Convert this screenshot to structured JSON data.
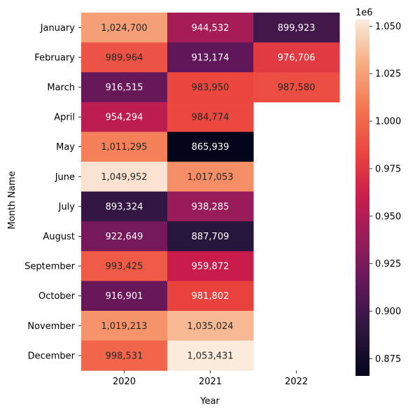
{
  "chart_data": {
    "type": "heatmap",
    "title": "",
    "xlabel": "Year",
    "ylabel": "Month Name",
    "columns": [
      "2020",
      "2021",
      "2022"
    ],
    "rows": [
      "January",
      "February",
      "March",
      "April",
      "May",
      "June",
      "July",
      "August",
      "September",
      "October",
      "November",
      "December"
    ],
    "values": [
      [
        1024700,
        944532,
        899923
      ],
      [
        989964,
        913174,
        976706
      ],
      [
        916515,
        983950,
        987580
      ],
      [
        954294,
        984774,
        null
      ],
      [
        1011295,
        865939,
        null
      ],
      [
        1049952,
        1017053,
        null
      ],
      [
        893324,
        938285,
        null
      ],
      [
        922649,
        887709,
        null
      ],
      [
        993425,
        959872,
        null
      ],
      [
        916901,
        981802,
        null
      ],
      [
        1019213,
        1035024,
        null
      ],
      [
        998531,
        1053431,
        null
      ]
    ],
    "value_labels": [
      [
        "1,024,700",
        "944,532",
        "899,923"
      ],
      [
        "989,964",
        "913,174",
        "976,706"
      ],
      [
        "916,515",
        "983,950",
        "987,580"
      ],
      [
        "954,294",
        "984,774",
        ""
      ],
      [
        "1,011,295",
        "865,939",
        ""
      ],
      [
        "1,049,952",
        "1,017,053",
        ""
      ],
      [
        "893,324",
        "938,285",
        ""
      ],
      [
        "922,649",
        "887,709",
        ""
      ],
      [
        "993,425",
        "959,872",
        ""
      ],
      [
        "916,901",
        "981,802",
        ""
      ],
      [
        "1,019,213",
        "1,035,024",
        ""
      ],
      [
        "998,531",
        "1,053,431",
        ""
      ]
    ],
    "colorbar": {
      "min": 865939,
      "max": 1053431,
      "ticks": [
        0.875,
        0.9,
        0.925,
        0.95,
        0.975,
        1.0,
        1.025,
        1.05
      ],
      "tick_labels": [
        "0.875",
        "0.900",
        "0.925",
        "0.950",
        "0.975",
        "1.000",
        "1.025",
        "1.050"
      ],
      "scale_label": "1e6",
      "colormap": "rocket"
    },
    "grid": false
  }
}
